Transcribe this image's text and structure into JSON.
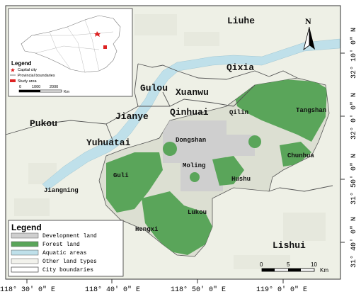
{
  "map": {
    "districts": {
      "liuhe": "Liuhe",
      "qixia": "Qixia",
      "gulou": "Gulou",
      "xuanwu": "Xuanwu",
      "qinhuai": "Qinhuai",
      "jianye": "Jianye",
      "qilin": "Qilin",
      "tangshan": "Tangshan",
      "pukou": "Pukou",
      "yuhuatai": "Yuhuatai",
      "dongshan": "Dongshan",
      "moling": "Moling",
      "chunhua": "Chunhua",
      "hushu": "Hushu",
      "guli": "Guli",
      "jiangning": "Jiangning",
      "lukou": "Lukou",
      "hengxi": "Hengxi",
      "lishui": "Lishui"
    },
    "north_label": "N",
    "scale": {
      "zero": "0",
      "mid": "5",
      "max": "10",
      "unit": "Km"
    },
    "lon_ticks": [
      "118° 30′ 0″ E",
      "118° 40′ 0″ E",
      "118° 50′ 0″ E",
      "119° 0′ 0″ E"
    ],
    "lat_ticks": [
      "32° 10′ 0″ N",
      "32° 0′ 0″ N",
      "31° 50′ 0″ N",
      "31° 40′ 0″ N"
    ],
    "legend": {
      "title": "Legend",
      "items": [
        {
          "label": "Development land",
          "color": "#cfcfcf"
        },
        {
          "label": "Forest land",
          "color": "#5aa55a"
        },
        {
          "label": "Aquatic areas",
          "color": "#bfe0ea"
        },
        {
          "label": "Other land types",
          "color": "#f2f2ec"
        },
        {
          "label": "City boundaries",
          "color": "#ffffff"
        }
      ]
    },
    "inset": {
      "legend_title": "Legend",
      "items": [
        "Capital city",
        "Provincial boundaries",
        "Study area"
      ],
      "scale": {
        "zero": "0",
        "mid": "1000",
        "max": "2000",
        "unit": "Km"
      }
    }
  }
}
